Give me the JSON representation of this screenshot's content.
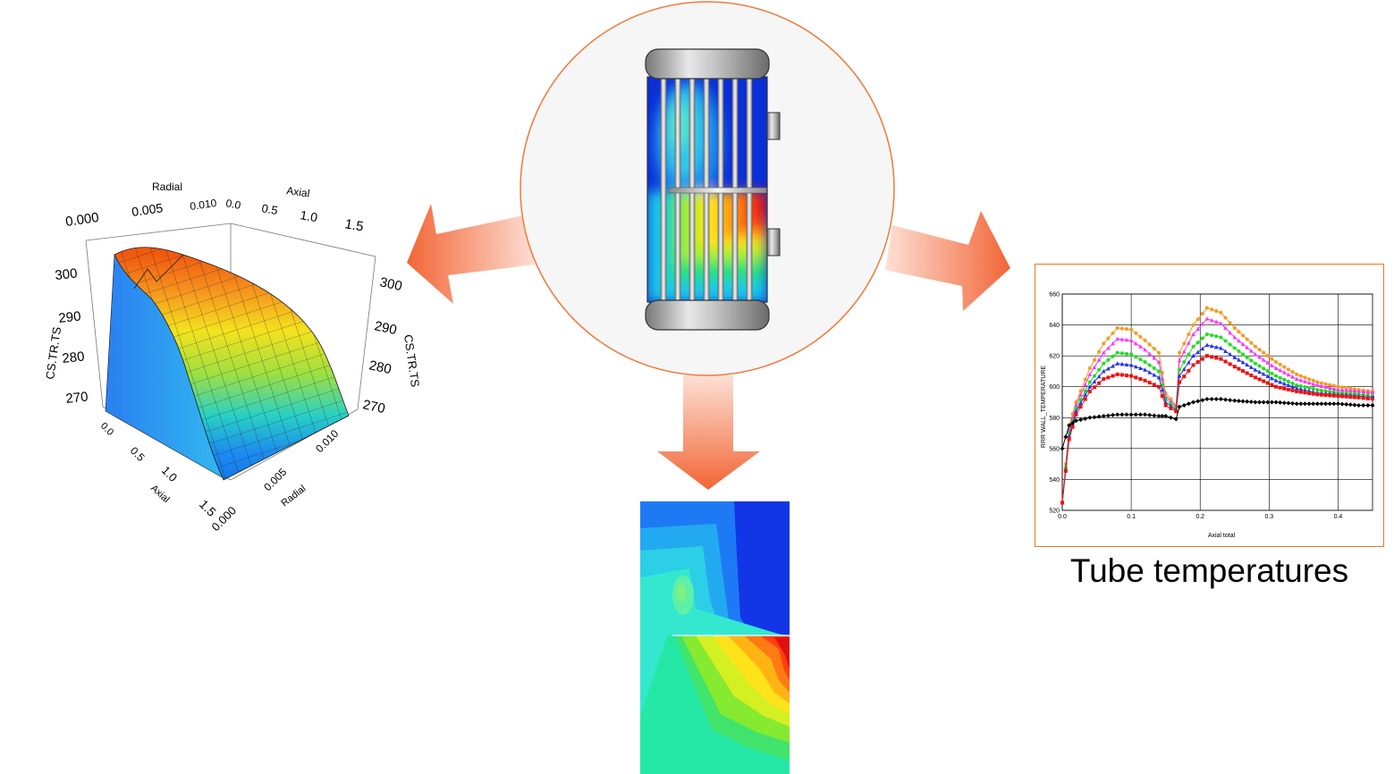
{
  "diagram": {
    "arrow_colors": {
      "start": "#fde0d6",
      "end": "#f26535"
    },
    "hub": {
      "fill": "#f6f6f6",
      "stroke": "#f07a3a",
      "name": "heat-exchanger"
    }
  },
  "surface_plot": {
    "axis_labels": {
      "radial_top": "Radial",
      "axial_top": "Axial",
      "radial_bottom": "Radial",
      "axial_bottom": "Axial",
      "z_left": "CS.TR.TS",
      "z_right": "CS.TR.TS"
    },
    "radial_ticks_top": [
      "0.000",
      "0.005",
      "0.010"
    ],
    "axial_ticks_top": [
      "0.0",
      "0.5",
      "1.0",
      "1.5"
    ],
    "z_ticks_left": [
      "300",
      "290",
      "280",
      "270"
    ],
    "z_ticks_right": [
      "300",
      "290",
      "280",
      "270"
    ],
    "axial_ticks_bottom": [
      "0.0",
      "0.5",
      "1.0",
      "1.5"
    ],
    "radial_ticks_bottom": [
      "0.010",
      "0.005",
      "0.000"
    ]
  },
  "tube_chart": {
    "caption": "Tube temperatures",
    "ylabel": "RRR WALL_TEMPERATURE",
    "xlabel": "Axial total",
    "y_ticks": [
      "660",
      "640",
      "620",
      "600",
      "580",
      "560",
      "540",
      "520"
    ],
    "x_ticks": [
      "0.0",
      "0.1",
      "0.2",
      "0.3",
      "0.4"
    ]
  },
  "chart_data": {
    "type": "scatter",
    "xlabel": "Axial total",
    "ylabel": "RRR WALL_TEMPERATURE",
    "xlim": [
      0,
      0.45
    ],
    "ylim": [
      520,
      660
    ],
    "grid": true,
    "series": [
      {
        "color": "#f59a1f",
        "marker": "circle",
        "points": [
          [
            0,
            525
          ],
          [
            0.01,
            575
          ],
          [
            0.02,
            590
          ],
          [
            0.04,
            612
          ],
          [
            0.06,
            628
          ],
          [
            0.08,
            638
          ],
          [
            0.1,
            637
          ],
          [
            0.12,
            630
          ],
          [
            0.14,
            622
          ],
          [
            0.15,
            596
          ],
          [
            0.165,
            588
          ],
          [
            0.17,
            622
          ],
          [
            0.19,
            640
          ],
          [
            0.21,
            651
          ],
          [
            0.23,
            648
          ],
          [
            0.25,
            638
          ],
          [
            0.28,
            626
          ],
          [
            0.31,
            616
          ],
          [
            0.34,
            608
          ],
          [
            0.37,
            603
          ],
          [
            0.4,
            600
          ],
          [
            0.43,
            598
          ],
          [
            0.45,
            597
          ]
        ]
      },
      {
        "color": "#ff33ff",
        "marker": "triangle",
        "points": [
          [
            0,
            525
          ],
          [
            0.01,
            572
          ],
          [
            0.02,
            588
          ],
          [
            0.04,
            608
          ],
          [
            0.06,
            622
          ],
          [
            0.08,
            631
          ],
          [
            0.1,
            630
          ],
          [
            0.12,
            624
          ],
          [
            0.14,
            616
          ],
          [
            0.15,
            594
          ],
          [
            0.165,
            587
          ],
          [
            0.17,
            617
          ],
          [
            0.19,
            634
          ],
          [
            0.21,
            644
          ],
          [
            0.23,
            641
          ],
          [
            0.25,
            632
          ],
          [
            0.28,
            621
          ],
          [
            0.31,
            612
          ],
          [
            0.34,
            605
          ],
          [
            0.37,
            601
          ],
          [
            0.4,
            598
          ],
          [
            0.43,
            597
          ],
          [
            0.45,
            596
          ]
        ]
      },
      {
        "color": "#22dd22",
        "marker": "circle",
        "points": [
          [
            0,
            525
          ],
          [
            0.01,
            570
          ],
          [
            0.02,
            586
          ],
          [
            0.04,
            603
          ],
          [
            0.06,
            615
          ],
          [
            0.08,
            622
          ],
          [
            0.1,
            621
          ],
          [
            0.12,
            616
          ],
          [
            0.14,
            610
          ],
          [
            0.15,
            592
          ],
          [
            0.165,
            586
          ],
          [
            0.17,
            611
          ],
          [
            0.19,
            626
          ],
          [
            0.21,
            634
          ],
          [
            0.23,
            632
          ],
          [
            0.25,
            625
          ],
          [
            0.28,
            615
          ],
          [
            0.31,
            607
          ],
          [
            0.34,
            601
          ],
          [
            0.37,
            598
          ],
          [
            0.4,
            596
          ],
          [
            0.43,
            595
          ],
          [
            0.45,
            594
          ]
        ]
      },
      {
        "color": "#2233ee",
        "marker": "triangle",
        "points": [
          [
            0,
            525
          ],
          [
            0.01,
            568
          ],
          [
            0.02,
            584
          ],
          [
            0.04,
            600
          ],
          [
            0.06,
            610
          ],
          [
            0.08,
            615
          ],
          [
            0.1,
            614
          ],
          [
            0.12,
            611
          ],
          [
            0.14,
            606
          ],
          [
            0.15,
            590
          ],
          [
            0.165,
            585
          ],
          [
            0.17,
            607
          ],
          [
            0.19,
            620
          ],
          [
            0.21,
            627
          ],
          [
            0.23,
            625
          ],
          [
            0.25,
            619
          ],
          [
            0.28,
            611
          ],
          [
            0.31,
            604
          ],
          [
            0.34,
            599
          ],
          [
            0.37,
            596
          ],
          [
            0.4,
            595
          ],
          [
            0.43,
            594
          ],
          [
            0.45,
            593
          ]
        ]
      },
      {
        "color": "#ee1111",
        "marker": "square",
        "points": [
          [
            0,
            525
          ],
          [
            0.01,
            566
          ],
          [
            0.02,
            582
          ],
          [
            0.04,
            597
          ],
          [
            0.06,
            605
          ],
          [
            0.08,
            608
          ],
          [
            0.1,
            607
          ],
          [
            0.12,
            604
          ],
          [
            0.14,
            600
          ],
          [
            0.15,
            588
          ],
          [
            0.165,
            584
          ],
          [
            0.17,
            603
          ],
          [
            0.19,
            614
          ],
          [
            0.21,
            620
          ],
          [
            0.23,
            618
          ],
          [
            0.25,
            613
          ],
          [
            0.28,
            606
          ],
          [
            0.31,
            600
          ],
          [
            0.34,
            597
          ],
          [
            0.37,
            595
          ],
          [
            0.4,
            594
          ],
          [
            0.43,
            593
          ],
          [
            0.45,
            592
          ]
        ]
      },
      {
        "color": "#000000",
        "marker": "diamond",
        "points": [
          [
            0,
            560
          ],
          [
            0.01,
            575
          ],
          [
            0.02,
            578
          ],
          [
            0.04,
            580
          ],
          [
            0.06,
            581
          ],
          [
            0.08,
            582
          ],
          [
            0.1,
            582
          ],
          [
            0.12,
            582
          ],
          [
            0.14,
            581
          ],
          [
            0.15,
            581
          ],
          [
            0.165,
            579
          ],
          [
            0.17,
            587
          ],
          [
            0.19,
            590
          ],
          [
            0.21,
            592
          ],
          [
            0.23,
            592
          ],
          [
            0.25,
            591
          ],
          [
            0.28,
            590
          ],
          [
            0.31,
            590
          ],
          [
            0.34,
            589
          ],
          [
            0.37,
            589
          ],
          [
            0.4,
            589
          ],
          [
            0.43,
            588
          ],
          [
            0.45,
            588
          ]
        ]
      }
    ]
  }
}
